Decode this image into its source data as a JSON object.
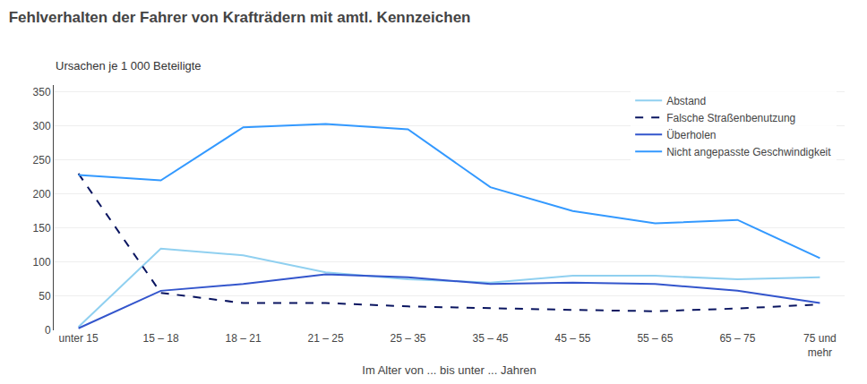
{
  "chart_data": {
    "type": "line",
    "title": "Fehlverhalten der Fahrer von Krafträdern mit amtl. Kennzeichen",
    "subtitle": "Ursachen je 1 000 Beteiligte",
    "xlabel": "Im Alter von ... bis unter ... Jahren",
    "categories": [
      "unter 15",
      "15 – 18",
      "18 – 21",
      "21 – 25",
      "25 – 35",
      "35 – 45",
      "45 – 55",
      "55 – 65",
      "65 – 75",
      "75 und\nmehr"
    ],
    "series": [
      {
        "name": "Abstand",
        "color": "#90d0f0",
        "line_style": "solid",
        "values": [
          5,
          120,
          110,
          85,
          75,
          70,
          80,
          80,
          75,
          78
        ]
      },
      {
        "name": "Falsche Straßenbenutzung",
        "color": "#0a1560",
        "line_style": "dashed",
        "values": [
          230,
          55,
          40,
          40,
          35,
          32,
          30,
          28,
          32,
          38
        ]
      },
      {
        "name": "Überholen",
        "color": "#3355cc",
        "line_style": "solid",
        "values": [
          3,
          58,
          68,
          82,
          78,
          68,
          70,
          68,
          58,
          40
        ]
      },
      {
        "name": "Nicht angepasste Geschwindigkeit",
        "color": "#3399ff",
        "line_style": "solid",
        "values": [
          228,
          220,
          298,
          303,
          295,
          210,
          175,
          157,
          162,
          106
        ]
      }
    ],
    "ylim": [
      0,
      360
    ],
    "yticks": [
      0,
      50,
      100,
      150,
      200,
      250,
      300,
      350
    ],
    "grid": true,
    "legend": "upper right"
  }
}
